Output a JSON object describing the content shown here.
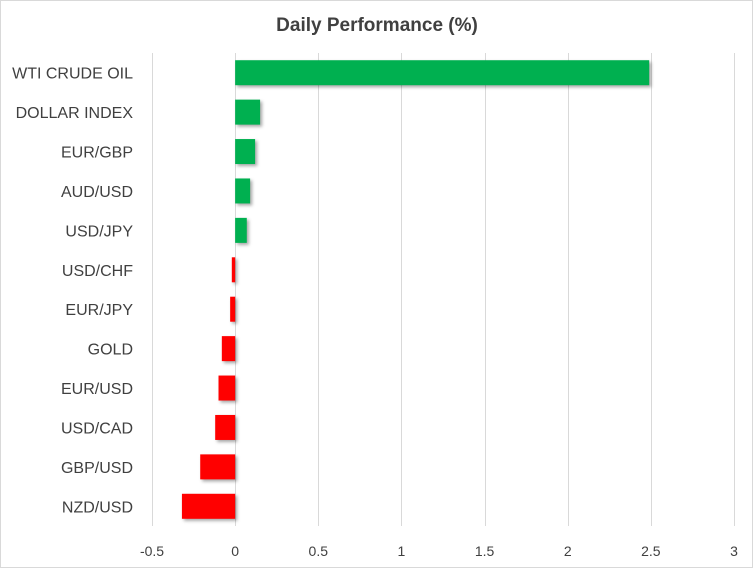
{
  "chart_data": {
    "type": "bar",
    "orientation": "horizontal",
    "title": "Daily Performance (%)",
    "xlabel": "",
    "ylabel": "",
    "categories": [
      "WTI CRUDE OIL",
      "DOLLAR INDEX",
      "EUR/GBP",
      "AUD/USD",
      "USD/JPY",
      "USD/CHF",
      "EUR/JPY",
      "GOLD",
      "EUR/USD",
      "USD/CAD",
      "GBP/USD",
      "NZD/USD"
    ],
    "values": [
      2.49,
      0.15,
      0.12,
      0.09,
      0.07,
      -0.02,
      -0.03,
      -0.08,
      -0.1,
      -0.12,
      -0.21,
      -0.32
    ],
    "xlim": [
      -0.5,
      3
    ],
    "xticks": [
      -0.5,
      0,
      0.5,
      1,
      1.5,
      2,
      2.5,
      3
    ],
    "xtick_labels": [
      "-0.5",
      "0",
      "0.5",
      "1",
      "1.5",
      "2",
      "2.5",
      "3"
    ],
    "grid": "vertical",
    "legend": "none",
    "colors": {
      "positive": "#00b050",
      "negative": "#ff0000",
      "grid": "#d9d9d9",
      "text": "#404040"
    }
  }
}
